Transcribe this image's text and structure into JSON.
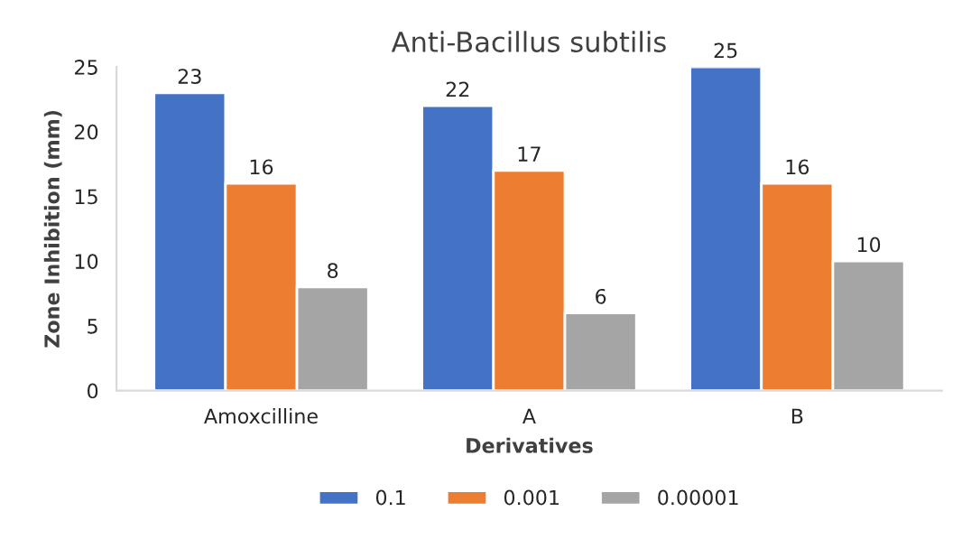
{
  "chart_data": {
    "type": "bar",
    "title": "Anti-Bacillus subtilis",
    "xlabel": "Derivatives",
    "ylabel": "Zone Inhibition (mm)",
    "categories": [
      "Amoxcilline",
      "A",
      "B"
    ],
    "series": [
      {
        "name": "0.1",
        "color": "#4472c4",
        "values": [
          23,
          22,
          25
        ]
      },
      {
        "name": "0.001",
        "color": "#ed7d31",
        "values": [
          16,
          17,
          16
        ]
      },
      {
        "name": "0.00001",
        "color": "#a5a5a5",
        "values": [
          8,
          6,
          10
        ]
      }
    ],
    "ylim": [
      0,
      25
    ],
    "yticks": [
      0,
      5,
      10,
      15,
      20,
      25
    ],
    "grid": false,
    "legend": "bottom",
    "data_labels": true
  }
}
